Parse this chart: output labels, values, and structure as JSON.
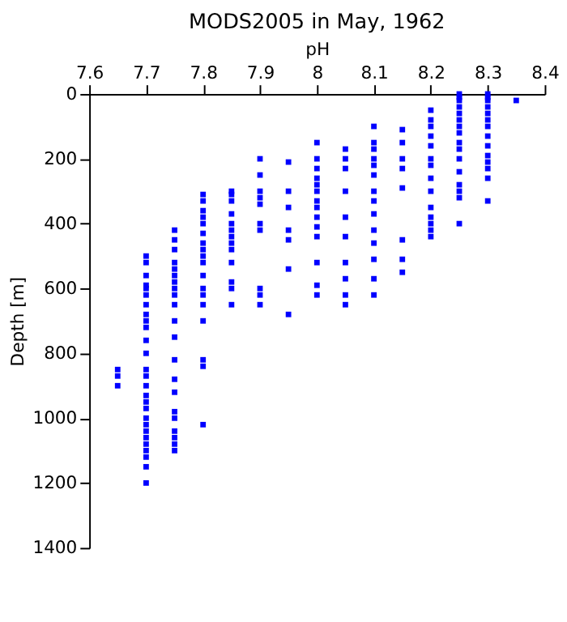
{
  "chart_data": {
    "type": "scatter",
    "title": "MODS2005 in May, 1962",
    "xlabel": "pH",
    "ylabel": "Depth [m]",
    "xlim": [
      7.6,
      8.4
    ],
    "xticks": [
      7.6,
      7.7,
      7.8,
      7.9,
      8,
      8.1,
      8.2,
      8.3,
      8.4
    ],
    "ylim": [
      1400,
      0
    ],
    "yticks": [
      0,
      200,
      400,
      600,
      800,
      1000,
      1200,
      1400
    ],
    "grid": false,
    "marker": "square",
    "series": [
      {
        "color": "#0000ff",
        "x": [
          7.65,
          7.65,
          7.65,
          7.7,
          7.7,
          7.7,
          7.7,
          7.7,
          7.7,
          7.7,
          7.7,
          7.7,
          7.7,
          7.7,
          7.7,
          7.7,
          7.7,
          7.7,
          7.7,
          7.7,
          7.7,
          7.7,
          7.7,
          7.7,
          7.7,
          7.7,
          7.7,
          7.7,
          7.7,
          7.7,
          7.75,
          7.75,
          7.75,
          7.75,
          7.75,
          7.75,
          7.75,
          7.75,
          7.75,
          7.75,
          7.75,
          7.75,
          7.75,
          7.75,
          7.75,
          7.75,
          7.75,
          7.75,
          7.75,
          7.75,
          7.75,
          7.8,
          7.8,
          7.8,
          7.8,
          7.8,
          7.8,
          7.8,
          7.8,
          7.8,
          7.8,
          7.8,
          7.8,
          7.8,
          7.8,
          7.8,
          7.8,
          7.8,
          7.8,
          7.85,
          7.85,
          7.85,
          7.85,
          7.85,
          7.85,
          7.85,
          7.85,
          7.85,
          7.85,
          7.85,
          7.85,
          7.85,
          7.9,
          7.9,
          7.9,
          7.9,
          7.9,
          7.9,
          7.9,
          7.9,
          7.9,
          7.9,
          7.95,
          7.95,
          7.95,
          7.95,
          7.95,
          7.95,
          7.95,
          8,
          8,
          8,
          8,
          8,
          8,
          8,
          8,
          8,
          8,
          8,
          8,
          8,
          8,
          8.05,
          8.05,
          8.05,
          8.05,
          8.05,
          8.05,
          8.05,
          8.05,
          8.05,
          8.05,
          8.1,
          8.1,
          8.1,
          8.1,
          8.1,
          8.1,
          8.1,
          8.1,
          8.1,
          8.1,
          8.1,
          8.1,
          8.1,
          8.1,
          8.15,
          8.15,
          8.15,
          8.15,
          8.15,
          8.15,
          8.15,
          8.15,
          8.2,
          8.2,
          8.2,
          8.2,
          8.2,
          8.2,
          8.2,
          8.2,
          8.2,
          8.2,
          8.2,
          8.2,
          8.2,
          8.2,
          8.25,
          8.25,
          8.25,
          8.25,
          8.25,
          8.25,
          8.25,
          8.25,
          8.25,
          8.25,
          8.25,
          8.25,
          8.25,
          8.25,
          8.25,
          8.25,
          8.3,
          8.3,
          8.3,
          8.3,
          8.3,
          8.3,
          8.3,
          8.3,
          8.3,
          8.3,
          8.3,
          8.3,
          8.3,
          8.3,
          8.35
        ],
        "values": [
          850,
          870,
          900,
          500,
          520,
          560,
          590,
          600,
          620,
          650,
          680,
          700,
          720,
          760,
          800,
          850,
          870,
          900,
          930,
          950,
          970,
          1000,
          1020,
          1040,
          1060,
          1080,
          1100,
          1120,
          1150,
          1200,
          420,
          450,
          480,
          520,
          540,
          560,
          580,
          600,
          620,
          650,
          700,
          750,
          820,
          880,
          920,
          980,
          1000,
          1040,
          1060,
          1080,
          1100,
          310,
          330,
          360,
          380,
          400,
          430,
          460,
          480,
          500,
          520,
          560,
          600,
          620,
          650,
          700,
          820,
          840,
          1020,
          300,
          310,
          330,
          370,
          400,
          420,
          440,
          460,
          480,
          520,
          580,
          600,
          650,
          200,
          250,
          300,
          320,
          340,
          400,
          420,
          600,
          620,
          650,
          210,
          300,
          350,
          420,
          450,
          540,
          680,
          150,
          200,
          230,
          260,
          280,
          300,
          330,
          350,
          380,
          410,
          440,
          520,
          590,
          620,
          170,
          200,
          230,
          300,
          380,
          440,
          520,
          570,
          620,
          650,
          100,
          150,
          170,
          200,
          220,
          250,
          300,
          330,
          370,
          420,
          460,
          510,
          570,
          620,
          110,
          150,
          200,
          230,
          290,
          450,
          510,
          550,
          50,
          80,
          100,
          130,
          160,
          200,
          220,
          260,
          300,
          350,
          380,
          400,
          420,
          440,
          0,
          10,
          20,
          40,
          60,
          80,
          100,
          120,
          150,
          170,
          200,
          240,
          280,
          300,
          320,
          400,
          0,
          10,
          20,
          40,
          60,
          80,
          100,
          130,
          160,
          190,
          210,
          230,
          260,
          330,
          20
        ]
      }
    ]
  }
}
